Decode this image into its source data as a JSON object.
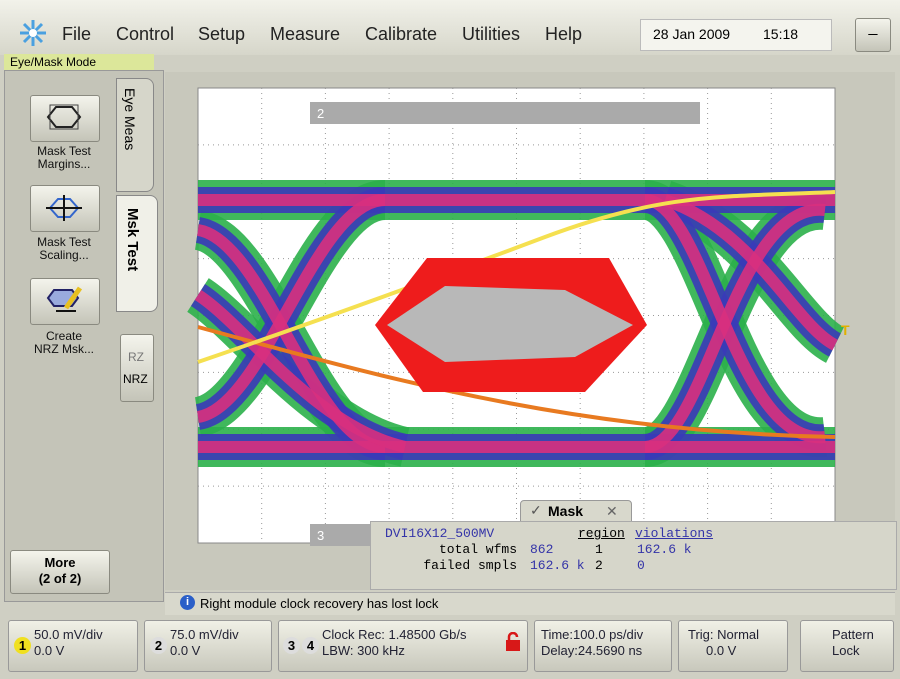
{
  "menu": {
    "items": [
      "File",
      "Control",
      "Setup",
      "Measure",
      "Calibrate",
      "Utilities",
      "Help"
    ],
    "date": "28 Jan 2009",
    "time": "15:18",
    "minimize": "_"
  },
  "mode_label": "Eye/Mask Mode",
  "side_panel": {
    "buttons": [
      {
        "lines": [
          "Mask Test",
          "Margins..."
        ]
      },
      {
        "lines": [
          "Mask Test",
          "Scaling..."
        ]
      },
      {
        "lines": [
          "Create",
          "NRZ Msk..."
        ]
      }
    ],
    "tabs": [
      "Eye Meas",
      "Msk Test"
    ],
    "format_buttons": [
      "RZ",
      "NRZ"
    ],
    "more": [
      "More",
      "(2 of 2)"
    ]
  },
  "display": {
    "markers": [
      "2",
      "3"
    ]
  },
  "mask_panel": {
    "title": "Mask",
    "name": "DVI16X12_500MV",
    "stats": [
      {
        "label": "total wfms",
        "value": "862"
      },
      {
        "label": "failed smpls",
        "value": "162.6 k"
      }
    ],
    "headers": [
      "region",
      "violations"
    ],
    "rows": [
      [
        "1",
        "162.6 k"
      ],
      [
        "2",
        "0"
      ]
    ]
  },
  "status": "Right module clock recovery has lost lock",
  "bottom_bar": {
    "ch1": {
      "num": "1",
      "scale": "50.0 mV/div",
      "offset": "0.0 V"
    },
    "ch2": {
      "num": "2",
      "scale": "75.0 mV/div",
      "offset": "0.0 V"
    },
    "ch34": {
      "nums": [
        "3",
        "4"
      ],
      "line1": "Clock Rec: 1.48500 Gb/s",
      "line2": "LBW: 300 kHz"
    },
    "timebase": {
      "line1": "Time:100.0 ps/div",
      "line2": "Delay:24.5690 ns"
    },
    "trigger": {
      "line1": "Trig: Normal",
      "line2": "0.0 V"
    },
    "pattern": {
      "line1": "Pattern",
      "line2": "Lock"
    }
  }
}
